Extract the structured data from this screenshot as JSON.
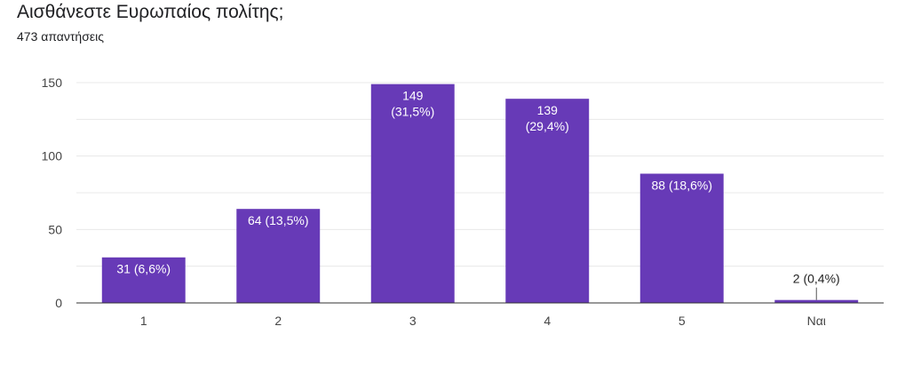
{
  "question": {
    "title": "Αισθάνεστε Ευρωπαίος πολίτης;",
    "responses": "473 απαντήσεις"
  },
  "colors": {
    "bar": "#673ab7",
    "grid": "#e8e8e8",
    "axis": "#333333"
  },
  "chart_data": {
    "type": "bar",
    "categories": [
      "1",
      "2",
      "3",
      "4",
      "5",
      "Ναι"
    ],
    "values": [
      31,
      64,
      149,
      139,
      88,
      2
    ],
    "data_labels": [
      [
        "31 (6,6%)"
      ],
      [
        "64 (13,5%)"
      ],
      [
        "149",
        "(31,5%)"
      ],
      [
        "139",
        "(29,4%)"
      ],
      [
        "88 (18,6%)"
      ],
      [
        "2 (0,4%)"
      ]
    ],
    "yticks": [
      0,
      50,
      100,
      150
    ],
    "ylim": [
      0,
      150
    ],
    "grid": true,
    "legend": "none"
  }
}
